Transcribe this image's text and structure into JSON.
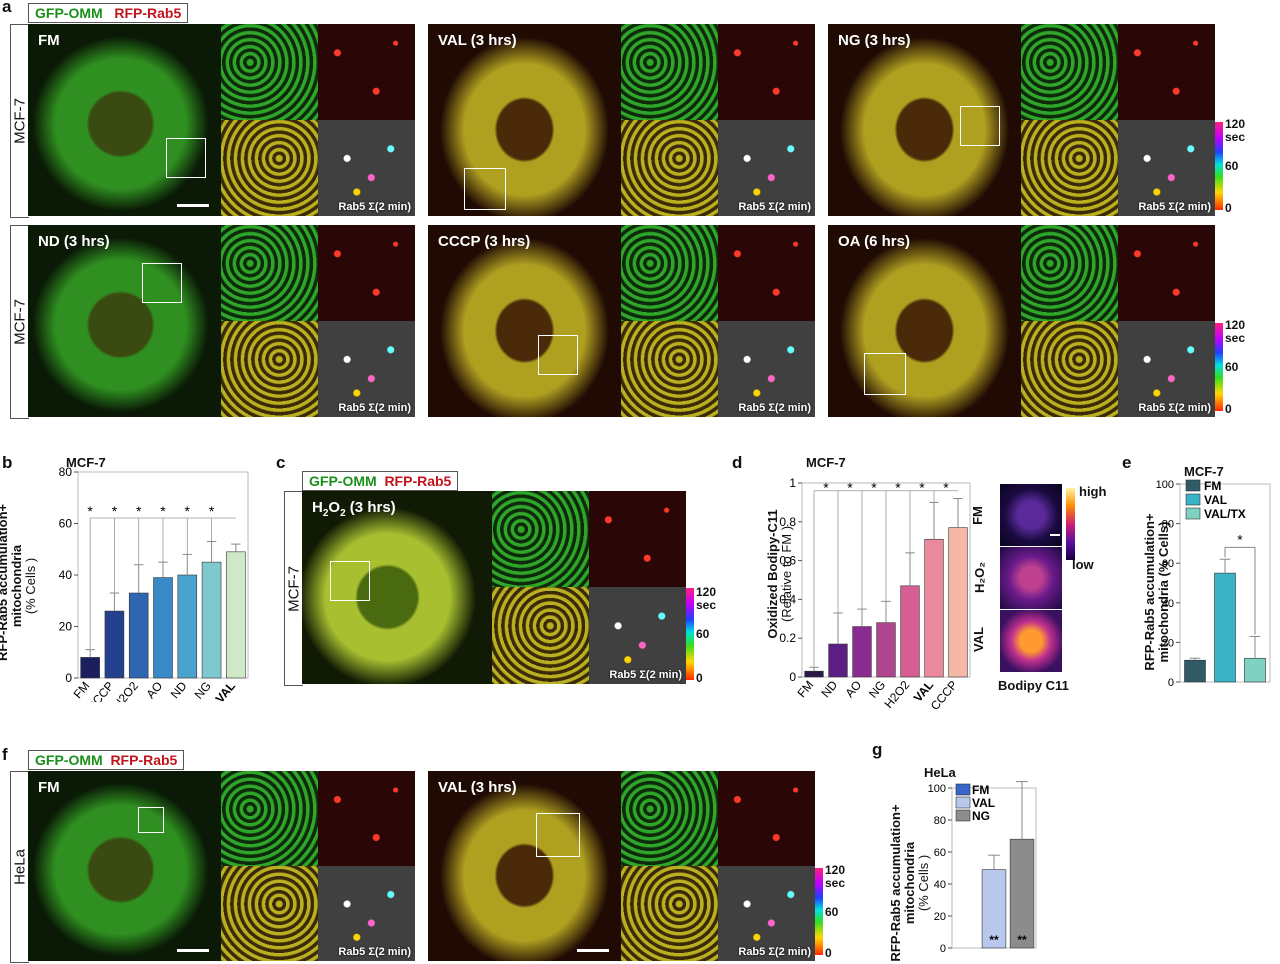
{
  "panels": {
    "a": "a",
    "b": "b",
    "c": "c",
    "d": "d",
    "e": "e",
    "f": "f",
    "g": "g"
  },
  "legend": {
    "gfp": "GFP-OMM",
    "rfp": "RFP-Rab5"
  },
  "cell_lines": {
    "mcf7": "MCF-7",
    "hela": "HeLa"
  },
  "sum_label": "Rab5 Σ(2 min)",
  "colorbar": {
    "top": "120",
    "unit": "sec",
    "mid": "60",
    "bottom": "0"
  },
  "panel_a": {
    "conditions": [
      "FM",
      "VAL (3 hrs)",
      "NG (3 hrs)",
      "ND (3 hrs)",
      "CCCP (3 hrs)",
      "OA (6 hrs)"
    ]
  },
  "panel_b": {
    "title": "MCF-7",
    "ylabel_line1": "RFP-Rab5 accumulation+",
    "ylabel_line2": "mitochondria",
    "ylabel_line3": "(% Cells )"
  },
  "panel_c": {
    "condition_pre": "H",
    "condition_sub": "2",
    "condition_mid": "O",
    "condition_sub2": "2",
    "condition_post": " (3 hrs)"
  },
  "panel_d": {
    "title": "MCF-7",
    "ylabel_line1": "Oxidized Bodipy-C11",
    "ylabel_line2": "(Relative to FM )",
    "side_labels": [
      "FM",
      "H₂O₂",
      "VAL"
    ],
    "scale_high": "high",
    "scale_low": "low",
    "caption": "Bodipy C11"
  },
  "panel_e": {
    "title": "MCF-7",
    "ylabel_line1": "RFP-Rab5 accumulation+",
    "ylabel_line2": "mitochondria (% Cells)"
  },
  "panel_f": {
    "conditions": [
      "FM",
      "VAL (3 hrs)"
    ]
  },
  "panel_g": {
    "title": "HeLa",
    "ylabel_line1": "RFP-Rab5 accumulation+",
    "ylabel_line2": "mitochondria",
    "ylabel_line3": "(% Cells )"
  },
  "chart_data": [
    {
      "id": "b",
      "type": "bar",
      "title": "MCF-7",
      "categories": [
        "FM",
        "CCCP",
        "H2O2",
        "AO",
        "ND",
        "NG",
        "VAL"
      ],
      "values": [
        8,
        26,
        33,
        39,
        40,
        45,
        49
      ],
      "errors": [
        3,
        7,
        11,
        6,
        8,
        8,
        3
      ],
      "colors": [
        "#1b1f5e",
        "#24418f",
        "#2e66b2",
        "#3a8ac8",
        "#4aa3cf",
        "#7ec8cf",
        "#cfe8c7"
      ],
      "ylim": [
        0,
        80
      ],
      "yticks": [
        0,
        20,
        40,
        60,
        80
      ],
      "significance": "*"
    },
    {
      "id": "d",
      "type": "bar",
      "title": "MCF-7",
      "categories": [
        "FM",
        "ND",
        "AO",
        "NG",
        "H2O2",
        "VAL",
        "CCCP"
      ],
      "values": [
        0.03,
        0.17,
        0.26,
        0.28,
        0.47,
        0.71,
        0.77
      ],
      "errors": [
        0.02,
        0.16,
        0.09,
        0.11,
        0.17,
        0.19,
        0.15
      ],
      "colors": [
        "#2a1848",
        "#5e1f84",
        "#8a2b8f",
        "#b0458f",
        "#d55f93",
        "#eb8a9c",
        "#f5b8a6"
      ],
      "ylim": [
        0,
        1.0
      ],
      "yticks": [
        0,
        0.2,
        0.4,
        0.6,
        0.8,
        1.0
      ],
      "significance": "*"
    },
    {
      "id": "e",
      "type": "bar",
      "title": "MCF-7",
      "categories": [
        "FM",
        "VAL",
        "VAL/TX"
      ],
      "values": [
        11,
        55,
        12
      ],
      "errors": [
        1,
        7,
        11
      ],
      "colors": [
        "#2f5a66",
        "#3ab3c6",
        "#7fd1c2"
      ],
      "ylim": [
        0,
        100
      ],
      "yticks": [
        0,
        20,
        40,
        60,
        80,
        100
      ],
      "series": [
        {
          "name": "FM"
        },
        {
          "name": "VAL"
        },
        {
          "name": "VAL/TX"
        }
      ],
      "significance": "*"
    },
    {
      "id": "g",
      "type": "bar",
      "title": "HeLa",
      "categories": [
        "FM",
        "VAL",
        "NG"
      ],
      "values": [
        0,
        49,
        68
      ],
      "errors": [
        0,
        9,
        36
      ],
      "colors": [
        "#3566c8",
        "#b8c8ec",
        "#8c8c8c"
      ],
      "ylim": [
        0,
        100
      ],
      "yticks": [
        0,
        20,
        40,
        60,
        80,
        100
      ],
      "series": [
        {
          "name": "FM"
        },
        {
          "name": "VAL"
        },
        {
          "name": "NG"
        }
      ],
      "significance": "**"
    }
  ]
}
